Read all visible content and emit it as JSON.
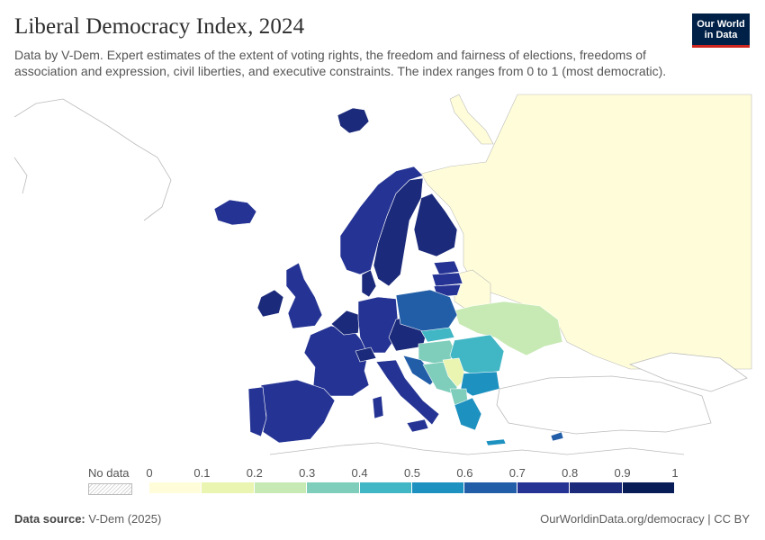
{
  "header": {
    "title": "Liberal Democracy Index, 2024",
    "subtitle": "Data by V-Dem. Expert estimates of the extent of voting rights, the freedom and fairness of elections, freedoms of association and expression, civil liberties, and executive constraints. The index ranges from 0 to 1 (most democratic).",
    "logo_line1": "Our World",
    "logo_line2": "in Data"
  },
  "legend": {
    "no_data_label": "No data",
    "ticks": [
      "0",
      "0.1",
      "0.2",
      "0.3",
      "0.4",
      "0.5",
      "0.6",
      "0.7",
      "0.8",
      "0.9",
      "1"
    ],
    "colors": [
      "#fffdd9",
      "#e9f5b0",
      "#c7e9b4",
      "#7fcdbb",
      "#41b6c4",
      "#1d91c0",
      "#225ea8",
      "#253494",
      "#1b2a7a",
      "#081d58"
    ]
  },
  "footer": {
    "source_label": "Data source:",
    "source_value": "V-Dem (2025)",
    "url": "OurWorldinData.org/democracy | CC BY"
  },
  "colors": {
    "background": "#ffffff",
    "brand_navy": "#002147",
    "brand_red": "#ce261e",
    "border": "#bbbbbb"
  }
}
